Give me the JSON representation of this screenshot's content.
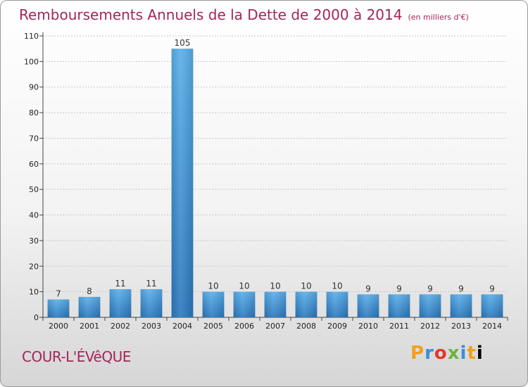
{
  "header": {
    "title": "Remboursements Annuels de la Dette de 2000 à 2014",
    "unit": "(en milliers d'€)"
  },
  "footer": {
    "city": "COUR-L'ÉVêQUE",
    "logo_letters": [
      "P",
      "r",
      "o",
      "x",
      "i",
      "t",
      "i"
    ]
  },
  "chart_data": {
    "type": "bar",
    "title": "Remboursements Annuels de la Dette de 2000 à 2014",
    "subtitle": "(en milliers d'€)",
    "categories": [
      "2000",
      "2001",
      "2002",
      "2003",
      "2004",
      "2005",
      "2006",
      "2007",
      "2008",
      "2009",
      "2010",
      "2011",
      "2012",
      "2013",
      "2014"
    ],
    "values": [
      7,
      8,
      11,
      11,
      105,
      10,
      10,
      10,
      10,
      10,
      9,
      9,
      9,
      9,
      9
    ],
    "ylim": [
      0,
      110
    ],
    "yticks": [
      0,
      10,
      20,
      30,
      40,
      50,
      60,
      70,
      80,
      90,
      100,
      110
    ],
    "grid": true,
    "bar_color": "#3a94d8"
  }
}
